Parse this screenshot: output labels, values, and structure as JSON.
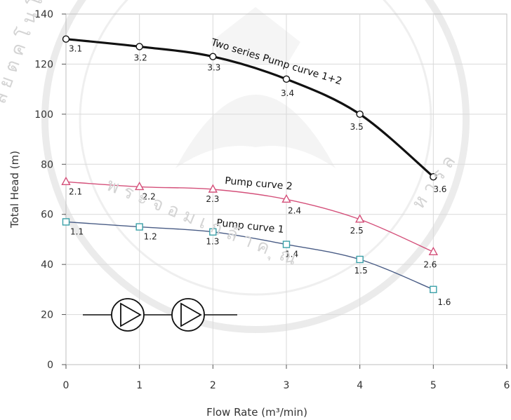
{
  "colors": {
    "curve1": "#4a5d86",
    "curve2": "#d4507a",
    "curve12": "#111111",
    "grid": "#d9d9d9",
    "background": "#ffffff",
    "watermark": "#d8d8d8"
  },
  "icons": [
    "pump-icon",
    "pump-icon"
  ],
  "watermark": {
    "left_text": "ล ย ต ค โ น โ ล ",
    "bottom_text": "พ ร ะ จ อ ม เ ก ล้ า ค ุ ณ",
    "right_text": "ห า ร ล"
  },
  "chart_data": {
    "type": "line",
    "title": "",
    "xlabel": "Flow Rate (m³/min)",
    "ylabel": "Total Head (m)",
    "xlim": [
      0,
      6
    ],
    "ylim": [
      0,
      140
    ],
    "x_ticks": [
      "0",
      "1",
      "2",
      "3",
      "4",
      "5",
      "6"
    ],
    "y_ticks": [
      "0",
      "20",
      "40",
      "60",
      "80",
      "100",
      "120",
      "140"
    ],
    "grid": true,
    "series": [
      {
        "name": "Pump curve 1",
        "x": [
          0,
          1,
          2,
          3,
          4,
          5
        ],
        "y": [
          57,
          55,
          53,
          48,
          42,
          30
        ],
        "point_labels": [
          "1.1",
          "1.2",
          "1.3",
          "1.4",
          "1.5",
          "1.6"
        ],
        "marker": "square"
      },
      {
        "name": "Pump curve 2",
        "x": [
          0,
          1,
          2,
          3,
          4,
          5
        ],
        "y": [
          73,
          71,
          70,
          66,
          58,
          45
        ],
        "point_labels": [
          "2.1",
          "2.2",
          "2.3",
          "2.4",
          "2.5",
          "2.6"
        ],
        "marker": "triangle"
      },
      {
        "name": "Two series Pump curve 1+2",
        "x": [
          0,
          1,
          2,
          3,
          4,
          5
        ],
        "y": [
          130,
          127,
          123,
          114,
          100,
          75
        ],
        "point_labels": [
          "3.1",
          "3.2",
          "3.3",
          "3.4",
          "3.5",
          "3.6"
        ],
        "marker": "circle"
      }
    ]
  }
}
